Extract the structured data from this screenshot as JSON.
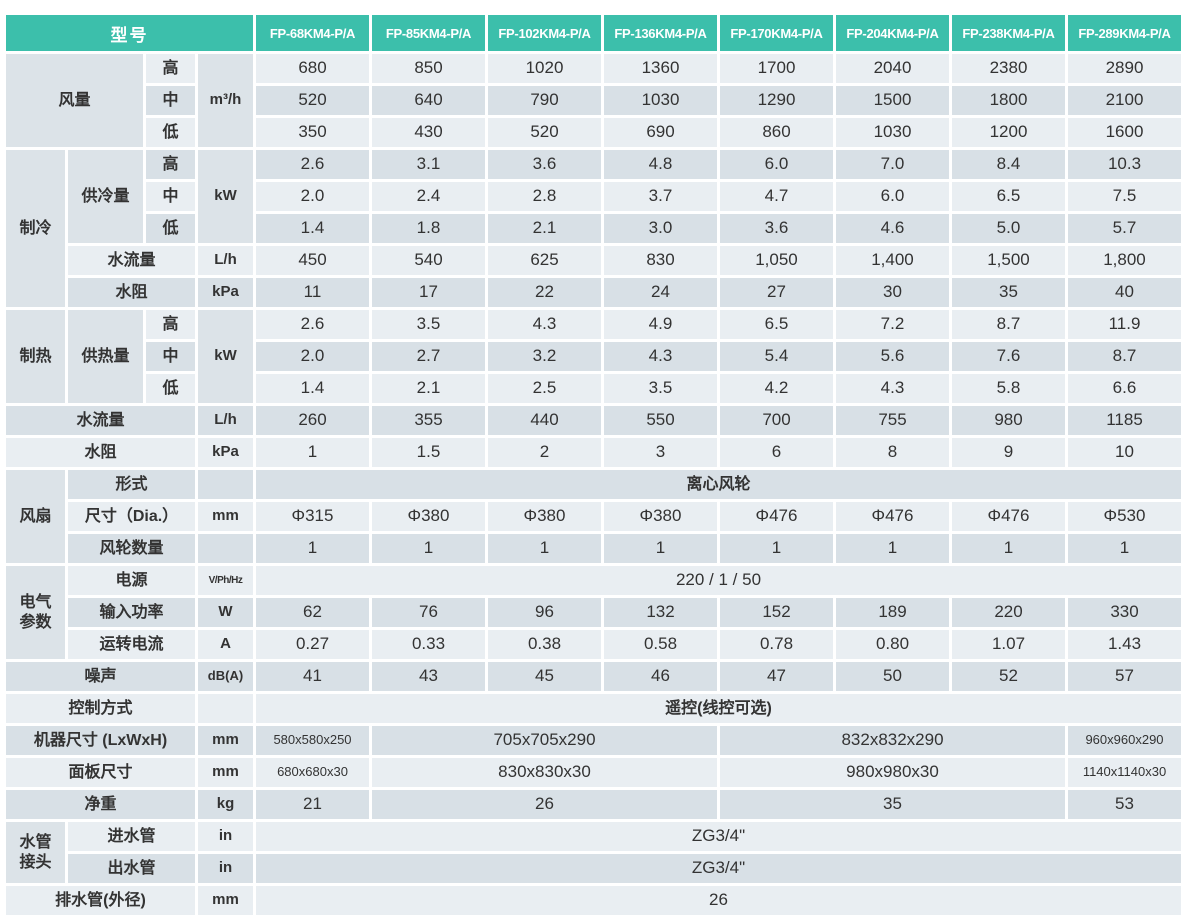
{
  "colors": {
    "header_bg": "#3cbfab",
    "row_light": "#e9eef2",
    "row_dark": "#d8e0e6",
    "span_bg": "#dce3e8",
    "text": "#333333",
    "header_text": "#ffffff"
  },
  "table": {
    "header": {
      "model_label": "型号",
      "models": [
        "FP-68KM4-P/A",
        "FP-85KM4-P/A",
        "FP-102KM4-P/A",
        "FP-136KM4-P/A",
        "FP-170KM4-P/A",
        "FP-204KM4-P/A",
        "FP-238KM4-P/A",
        "FP-289KM4-P/A"
      ]
    },
    "rows": [
      {
        "cells": [
          {
            "t": "风量",
            "cs": 2,
            "rs": 3,
            "k": "sec"
          },
          {
            "t": "高",
            "k": "lvl"
          },
          {
            "t": "m³/h",
            "rs": 3,
            "k": "unit"
          },
          {
            "t": "680",
            "k": "val"
          },
          {
            "t": "850",
            "k": "val"
          },
          {
            "t": "1020",
            "k": "val"
          },
          {
            "t": "1360",
            "k": "val"
          },
          {
            "t": "1700",
            "k": "val"
          },
          {
            "t": "2040",
            "k": "val"
          },
          {
            "t": "2380",
            "k": "val"
          },
          {
            "t": "2890",
            "k": "val"
          }
        ]
      },
      {
        "cells": [
          {
            "t": "中",
            "k": "lvl"
          },
          {
            "t": "520",
            "k": "val"
          },
          {
            "t": "640",
            "k": "val"
          },
          {
            "t": "790",
            "k": "val"
          },
          {
            "t": "1030",
            "k": "val"
          },
          {
            "t": "1290",
            "k": "val"
          },
          {
            "t": "1500",
            "k": "val"
          },
          {
            "t": "1800",
            "k": "val"
          },
          {
            "t": "2100",
            "k": "val"
          }
        ]
      },
      {
        "cells": [
          {
            "t": "低",
            "k": "lvl"
          },
          {
            "t": "350",
            "k": "val"
          },
          {
            "t": "430",
            "k": "val"
          },
          {
            "t": "520",
            "k": "val"
          },
          {
            "t": "690",
            "k": "val"
          },
          {
            "t": "860",
            "k": "val"
          },
          {
            "t": "1030",
            "k": "val"
          },
          {
            "t": "1200",
            "k": "val"
          },
          {
            "t": "1600",
            "k": "val"
          }
        ]
      },
      {
        "cells": [
          {
            "t": "制冷",
            "rs": 5,
            "k": "sec"
          },
          {
            "t": "供冷量",
            "rs": 3,
            "k": "lab"
          },
          {
            "t": "高",
            "k": "lvl"
          },
          {
            "t": "kW",
            "rs": 3,
            "k": "unit"
          },
          {
            "t": "2.6",
            "k": "val"
          },
          {
            "t": "3.1",
            "k": "val"
          },
          {
            "t": "3.6",
            "k": "val"
          },
          {
            "t": "4.8",
            "k": "val"
          },
          {
            "t": "6.0",
            "k": "val"
          },
          {
            "t": "7.0",
            "k": "val"
          },
          {
            "t": "8.4",
            "k": "val"
          },
          {
            "t": "10.3",
            "k": "val"
          }
        ]
      },
      {
        "cells": [
          {
            "t": "中",
            "k": "lvl"
          },
          {
            "t": "2.0",
            "k": "val"
          },
          {
            "t": "2.4",
            "k": "val"
          },
          {
            "t": "2.8",
            "k": "val"
          },
          {
            "t": "3.7",
            "k": "val"
          },
          {
            "t": "4.7",
            "k": "val"
          },
          {
            "t": "6.0",
            "k": "val"
          },
          {
            "t": "6.5",
            "k": "val"
          },
          {
            "t": "7.5",
            "k": "val"
          }
        ]
      },
      {
        "cells": [
          {
            "t": "低",
            "k": "lvl"
          },
          {
            "t": "1.4",
            "k": "val"
          },
          {
            "t": "1.8",
            "k": "val"
          },
          {
            "t": "2.1",
            "k": "val"
          },
          {
            "t": "3.0",
            "k": "val"
          },
          {
            "t": "3.6",
            "k": "val"
          },
          {
            "t": "4.6",
            "k": "val"
          },
          {
            "t": "5.0",
            "k": "val"
          },
          {
            "t": "5.7",
            "k": "val"
          }
        ]
      },
      {
        "cells": [
          {
            "t": "水流量",
            "cs": 2,
            "k": "lab"
          },
          {
            "t": "L/h",
            "k": "unit"
          },
          {
            "t": "450",
            "k": "val"
          },
          {
            "t": "540",
            "k": "val"
          },
          {
            "t": "625",
            "k": "val"
          },
          {
            "t": "830",
            "k": "val"
          },
          {
            "t": "1,050",
            "k": "val"
          },
          {
            "t": "1,400",
            "k": "val"
          },
          {
            "t": "1,500",
            "k": "val"
          },
          {
            "t": "1,800",
            "k": "val"
          }
        ]
      },
      {
        "cells": [
          {
            "t": "水阻",
            "cs": 2,
            "k": "lab"
          },
          {
            "t": "kPa",
            "k": "unit"
          },
          {
            "t": "11",
            "k": "val"
          },
          {
            "t": "17",
            "k": "val"
          },
          {
            "t": "22",
            "k": "val"
          },
          {
            "t": "24",
            "k": "val"
          },
          {
            "t": "27",
            "k": "val"
          },
          {
            "t": "30",
            "k": "val"
          },
          {
            "t": "35",
            "k": "val"
          },
          {
            "t": "40",
            "k": "val"
          }
        ]
      },
      {
        "cells": [
          {
            "t": "制热",
            "rs": 3,
            "k": "sec"
          },
          {
            "t": "供热量",
            "rs": 3,
            "k": "lab"
          },
          {
            "t": "高",
            "k": "lvl"
          },
          {
            "t": "kW",
            "rs": 3,
            "k": "unit"
          },
          {
            "t": "2.6",
            "k": "val"
          },
          {
            "t": "3.5",
            "k": "val"
          },
          {
            "t": "4.3",
            "k": "val"
          },
          {
            "t": "4.9",
            "k": "val"
          },
          {
            "t": "6.5",
            "k": "val"
          },
          {
            "t": "7.2",
            "k": "val"
          },
          {
            "t": "8.7",
            "k": "val"
          },
          {
            "t": "11.9",
            "k": "val"
          }
        ]
      },
      {
        "cells": [
          {
            "t": "中",
            "k": "lvl"
          },
          {
            "t": "2.0",
            "k": "val"
          },
          {
            "t": "2.7",
            "k": "val"
          },
          {
            "t": "3.2",
            "k": "val"
          },
          {
            "t": "4.3",
            "k": "val"
          },
          {
            "t": "5.4",
            "k": "val"
          },
          {
            "t": "5.6",
            "k": "val"
          },
          {
            "t": "7.6",
            "k": "val"
          },
          {
            "t": "8.7",
            "k": "val"
          }
        ]
      },
      {
        "cells": [
          {
            "t": "低",
            "k": "lvl"
          },
          {
            "t": "1.4",
            "k": "val"
          },
          {
            "t": "2.1",
            "k": "val"
          },
          {
            "t": "2.5",
            "k": "val"
          },
          {
            "t": "3.5",
            "k": "val"
          },
          {
            "t": "4.2",
            "k": "val"
          },
          {
            "t": "4.3",
            "k": "val"
          },
          {
            "t": "5.8",
            "k": "val"
          },
          {
            "t": "6.6",
            "k": "val"
          }
        ]
      },
      {
        "cells": [
          {
            "t": "水流量",
            "cs": 3,
            "k": "lab"
          },
          {
            "t": "L/h",
            "k": "unit"
          },
          {
            "t": "260",
            "k": "val"
          },
          {
            "t": "355",
            "k": "val"
          },
          {
            "t": "440",
            "k": "val"
          },
          {
            "t": "550",
            "k": "val"
          },
          {
            "t": "700",
            "k": "val"
          },
          {
            "t": "755",
            "k": "val"
          },
          {
            "t": "980",
            "k": "val"
          },
          {
            "t": "1185",
            "k": "val"
          }
        ]
      },
      {
        "cells": [
          {
            "t": "水阻",
            "cs": 3,
            "k": "lab"
          },
          {
            "t": "kPa",
            "k": "unit"
          },
          {
            "t": "1",
            "k": "val"
          },
          {
            "t": "1.5",
            "k": "val"
          },
          {
            "t": "2",
            "k": "val"
          },
          {
            "t": "3",
            "k": "val"
          },
          {
            "t": "6",
            "k": "val"
          },
          {
            "t": "8",
            "k": "val"
          },
          {
            "t": "9",
            "k": "val"
          },
          {
            "t": "10",
            "k": "val"
          }
        ]
      },
      {
        "cells": [
          {
            "t": "风扇",
            "rs": 3,
            "k": "sec"
          },
          {
            "t": "形式",
            "cs": 2,
            "k": "lab"
          },
          {
            "t": "",
            "k": "unit"
          },
          {
            "t": "离心风轮",
            "cs": 8,
            "k": "val",
            "cls": "cjk"
          }
        ]
      },
      {
        "cells": [
          {
            "t": "尺寸（Dia.）",
            "cs": 2,
            "k": "lab"
          },
          {
            "t": "mm",
            "k": "unit"
          },
          {
            "t": "Φ315",
            "k": "val"
          },
          {
            "t": "Φ380",
            "k": "val"
          },
          {
            "t": "Φ380",
            "k": "val"
          },
          {
            "t": "Φ380",
            "k": "val"
          },
          {
            "t": "Φ476",
            "k": "val"
          },
          {
            "t": "Φ476",
            "k": "val"
          },
          {
            "t": "Φ476",
            "k": "val"
          },
          {
            "t": "Φ530",
            "k": "val"
          }
        ]
      },
      {
        "cells": [
          {
            "t": "风轮数量",
            "cs": 2,
            "k": "lab"
          },
          {
            "t": "",
            "k": "unit"
          },
          {
            "t": "1",
            "k": "val"
          },
          {
            "t": "1",
            "k": "val"
          },
          {
            "t": "1",
            "k": "val"
          },
          {
            "t": "1",
            "k": "val"
          },
          {
            "t": "1",
            "k": "val"
          },
          {
            "t": "1",
            "k": "val"
          },
          {
            "t": "1",
            "k": "val"
          },
          {
            "t": "1",
            "k": "val"
          }
        ]
      },
      {
        "cells": [
          {
            "t": "电气\n参数",
            "rs": 3,
            "k": "sec"
          },
          {
            "t": "电源",
            "cs": 2,
            "k": "lab"
          },
          {
            "t": "V/Ph/Hz",
            "k": "unit",
            "cls": "xs"
          },
          {
            "t": "220 / 1 / 50",
            "cs": 8,
            "k": "val"
          }
        ]
      },
      {
        "cells": [
          {
            "t": "输入功率",
            "cs": 2,
            "k": "lab"
          },
          {
            "t": "W",
            "k": "unit"
          },
          {
            "t": "62",
            "k": "val"
          },
          {
            "t": "76",
            "k": "val"
          },
          {
            "t": "96",
            "k": "val"
          },
          {
            "t": "132",
            "k": "val"
          },
          {
            "t": "152",
            "k": "val"
          },
          {
            "t": "189",
            "k": "val"
          },
          {
            "t": "220",
            "k": "val"
          },
          {
            "t": "330",
            "k": "val"
          }
        ]
      },
      {
        "cells": [
          {
            "t": "运转电流",
            "cs": 2,
            "k": "lab"
          },
          {
            "t": "A",
            "k": "unit"
          },
          {
            "t": "0.27",
            "k": "val"
          },
          {
            "t": "0.33",
            "k": "val"
          },
          {
            "t": "0.38",
            "k": "val"
          },
          {
            "t": "0.58",
            "k": "val"
          },
          {
            "t": "0.78",
            "k": "val"
          },
          {
            "t": "0.80",
            "k": "val"
          },
          {
            "t": "1.07",
            "k": "val"
          },
          {
            "t": "1.43",
            "k": "val"
          }
        ]
      },
      {
        "cells": [
          {
            "t": "噪声",
            "cs": 3,
            "k": "lab"
          },
          {
            "t": "dB(A)",
            "k": "unit",
            "cls": "sm"
          },
          {
            "t": "41",
            "k": "val"
          },
          {
            "t": "43",
            "k": "val"
          },
          {
            "t": "45",
            "k": "val"
          },
          {
            "t": "46",
            "k": "val"
          },
          {
            "t": "47",
            "k": "val"
          },
          {
            "t": "50",
            "k": "val"
          },
          {
            "t": "52",
            "k": "val"
          },
          {
            "t": "57",
            "k": "val"
          }
        ]
      },
      {
        "cells": [
          {
            "t": "控制方式",
            "cs": 3,
            "k": "lab"
          },
          {
            "t": "",
            "k": "unit"
          },
          {
            "t": "遥控(线控可选)",
            "cs": 8,
            "k": "val",
            "cls": "cjk"
          }
        ]
      },
      {
        "cells": [
          {
            "t": "机器尺寸 (LxWxH)",
            "cs": 3,
            "k": "lab"
          },
          {
            "t": "mm",
            "k": "unit"
          },
          {
            "t": "580x580x250",
            "k": "val",
            "cls": "sm"
          },
          {
            "t": "705x705x290",
            "cs": 3,
            "k": "val"
          },
          {
            "t": "832x832x290",
            "cs": 3,
            "k": "val"
          },
          {
            "t": "960x960x290",
            "k": "val",
            "cls": "sm"
          }
        ]
      },
      {
        "cells": [
          {
            "t": "面板尺寸",
            "cs": 3,
            "k": "lab"
          },
          {
            "t": "mm",
            "k": "unit"
          },
          {
            "t": "680x680x30",
            "k": "val",
            "cls": "sm"
          },
          {
            "t": "830x830x30",
            "cs": 3,
            "k": "val"
          },
          {
            "t": "980x980x30",
            "cs": 3,
            "k": "val"
          },
          {
            "t": "1140x1140x30",
            "k": "val",
            "cls": "sm"
          }
        ]
      },
      {
        "cells": [
          {
            "t": "净重",
            "cs": 3,
            "k": "lab"
          },
          {
            "t": "kg",
            "k": "unit"
          },
          {
            "t": "21",
            "k": "val"
          },
          {
            "t": "26",
            "cs": 3,
            "k": "val"
          },
          {
            "t": "35",
            "cs": 3,
            "k": "val"
          },
          {
            "t": "53",
            "k": "val"
          }
        ]
      },
      {
        "cells": [
          {
            "t": "水管\n接头",
            "rs": 2,
            "k": "sec"
          },
          {
            "t": "进水管",
            "cs": 2,
            "k": "lab"
          },
          {
            "t": "in",
            "k": "unit"
          },
          {
            "t": "ZG3/4\"",
            "cs": 8,
            "k": "val"
          }
        ]
      },
      {
        "cells": [
          {
            "t": "出水管",
            "cs": 2,
            "k": "lab"
          },
          {
            "t": "in",
            "k": "unit"
          },
          {
            "t": "ZG3/4\"",
            "cs": 8,
            "k": "val"
          }
        ]
      },
      {
        "cells": [
          {
            "t": "排水管(外径)",
            "cs": 3,
            "k": "lab"
          },
          {
            "t": "mm",
            "k": "unit"
          },
          {
            "t": "26",
            "cs": 8,
            "k": "val"
          }
        ]
      }
    ]
  }
}
